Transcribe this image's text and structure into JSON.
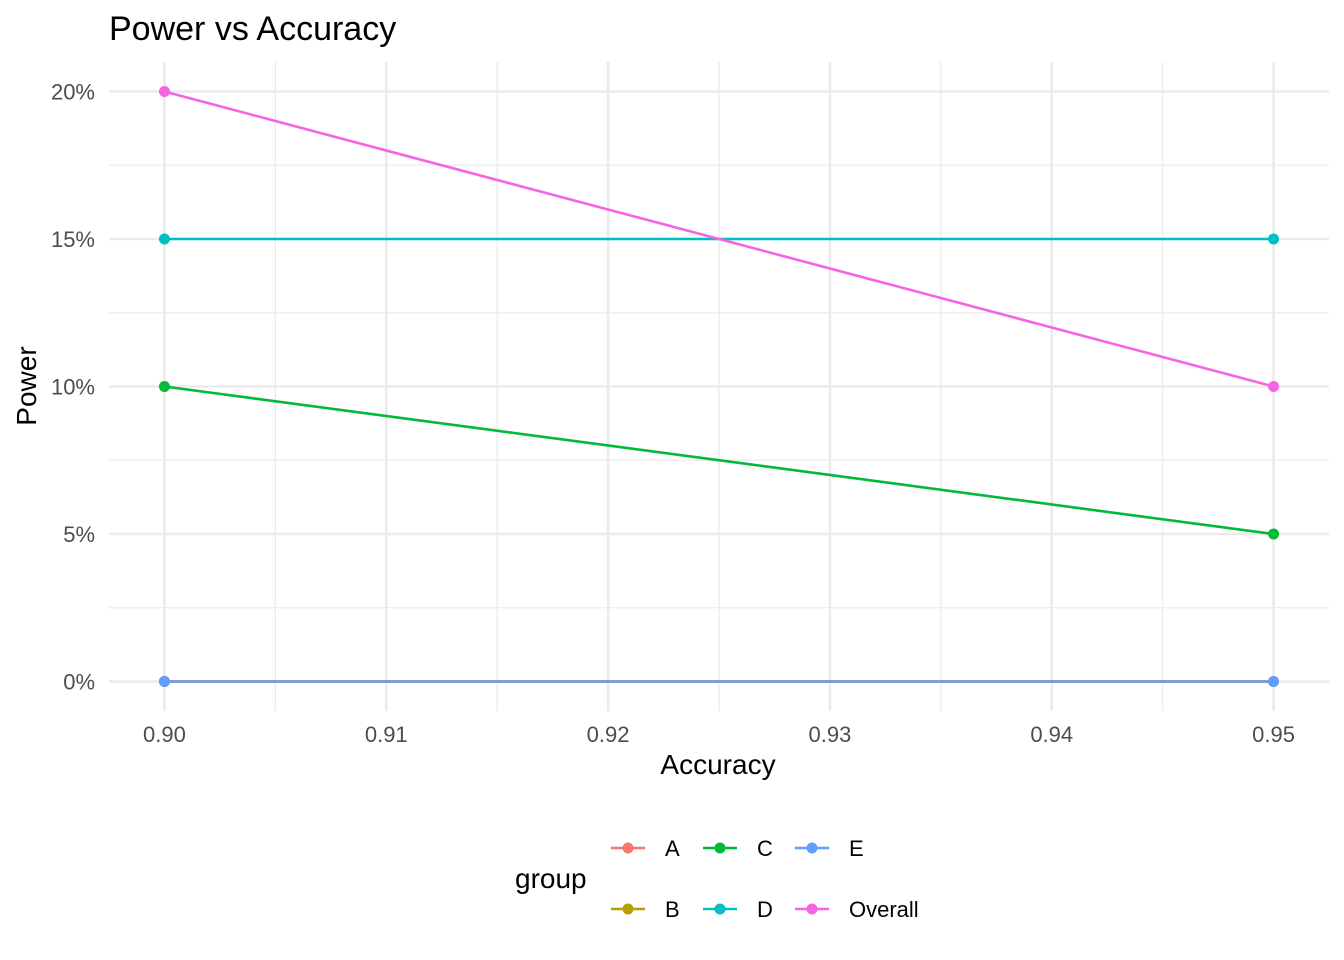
{
  "chart_data": {
    "type": "line",
    "title": "Power vs Accuracy",
    "xlabel": "Accuracy",
    "ylabel": "Power",
    "x": [
      0.9,
      0.95
    ],
    "x_ticks": [
      "0.90",
      "0.91",
      "0.92",
      "0.93",
      "0.94",
      "0.95"
    ],
    "y_ticks": [
      "0%",
      "5%",
      "10%",
      "15%",
      "20%"
    ],
    "xlim": [
      0.8975,
      0.9525
    ],
    "ylim": [
      -0.01,
      0.21
    ],
    "grid": true,
    "legend": {
      "title": "group",
      "placement": "bottom"
    },
    "series": [
      {
        "name": "A",
        "color": "#F8766D",
        "values": [
          0.0,
          0.0
        ]
      },
      {
        "name": "B",
        "color": "#B79F00",
        "values": [
          0.0,
          0.0
        ]
      },
      {
        "name": "C",
        "color": "#00BA38",
        "values": [
          0.1,
          0.05
        ]
      },
      {
        "name": "D",
        "color": "#00BFC4",
        "values": [
          0.15,
          0.15
        ]
      },
      {
        "name": "E",
        "color": "#619CFF",
        "values": [
          0.0,
          0.0
        ]
      },
      {
        "name": "Overall",
        "color": "#F564E3",
        "values": [
          0.2,
          0.1
        ]
      }
    ]
  }
}
